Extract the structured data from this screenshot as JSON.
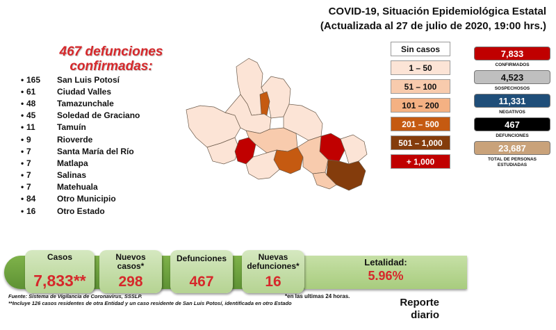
{
  "header": {
    "title_line1": "COVID-19, Situación Epidemiológica Estatal",
    "title_line2": "(Actualizada al 27 de julio de 2020, 19:00 hrs.)"
  },
  "headline": {
    "line1": "467 defunciones",
    "line2": "confirmadas:"
  },
  "municipalities": [
    {
      "count": "165",
      "name": "San Luis Potosí"
    },
    {
      "count": "61",
      "name": "Ciudad Valles"
    },
    {
      "count": "48",
      "name": "Tamazunchale"
    },
    {
      "count": "45",
      "name": "Soledad de Graciano"
    },
    {
      "count": "11",
      "name": "Tamuín"
    },
    {
      "count": "9",
      "name": "Rioverde"
    },
    {
      "count": "7",
      "name": "Santa María del Río"
    },
    {
      "count": "7",
      "name": "Matlapa"
    },
    {
      "count": "7",
      "name": "Salinas"
    },
    {
      "count": "7",
      "name": "Matehuala"
    },
    {
      "count": "84",
      "name": "Otro Municipio"
    },
    {
      "count": "16",
      "name": "Otro Estado"
    }
  ],
  "legend": [
    {
      "label": "Sin casos",
      "color": "#ffffff",
      "text_color": "#111111"
    },
    {
      "label": "1 – 50",
      "color": "#fce4d6",
      "text_color": "#111111"
    },
    {
      "label": "51 – 100",
      "color": "#f8cbad",
      "text_color": "#111111"
    },
    {
      "label": "101 – 200",
      "color": "#f4b183",
      "text_color": "#111111"
    },
    {
      "label": "201 – 500",
      "color": "#c55a11",
      "text_color": "#ffffff"
    },
    {
      "label": "501 – 1,000",
      "color": "#843c0c",
      "text_color": "#ffffff"
    },
    {
      "label": "+ 1,000",
      "color": "#c00000",
      "text_color": "#ffffff"
    }
  ],
  "stats": [
    {
      "value": "7,833",
      "label": "CONFIRMADOS",
      "color": "#c00000",
      "text_color": "#ffffff"
    },
    {
      "value": "4,523",
      "label": "SOSPECHOSOS",
      "color": "#bfbfbf",
      "text_color": "#111111"
    },
    {
      "value": "11,331",
      "label": "NEGATIVOS",
      "color": "#1f4e79",
      "text_color": "#ffffff"
    },
    {
      "value": "467",
      "label": "DEFUNCIONES",
      "color": "#000000",
      "text_color": "#ffffff"
    },
    {
      "value": "23,687",
      "label": "TOTAL DE PERSONAS ESTUDIADAS",
      "color": "#c9a27a",
      "text_color": "#ffffff"
    }
  ],
  "summary": {
    "casos_label": "Casos",
    "casos_value": "7,833**",
    "nuevos_casos_label": "Nuevos casos*",
    "nuevos_casos_value": "298",
    "defunciones_label": "Defunciones",
    "defunciones_value": "467",
    "nuevas_def_label": "Nuevas defunciones*",
    "nuevas_def_value": "16",
    "letalidad_label": "Letalidad:",
    "letalidad_value": "5.96%"
  },
  "footer": {
    "fuente": "Fuente: Sistema de Vigilancia de Coronavirus, SSSLP.",
    "nota": "**Incluye 126 casos residentes de otra Entidad y un caso residente de San Luis Potosí, identificada en otro Estado",
    "asterisco": "*en las ultimas 24 horas.",
    "reporte_line1": "Reporte",
    "reporte_line2": "diario"
  }
}
